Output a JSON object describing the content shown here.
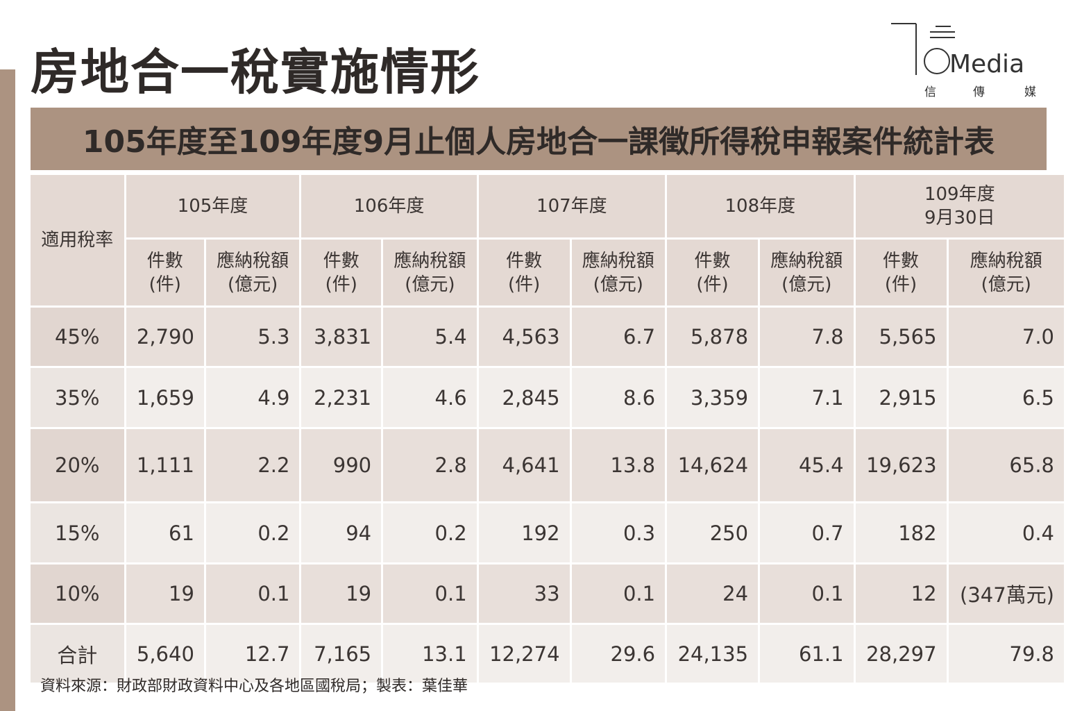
{
  "header": {
    "title": "房地合一稅實施情形",
    "logo": {
      "name": "Media",
      "subtitle": [
        "信",
        "傳",
        "媒"
      ]
    }
  },
  "table": {
    "caption": "105年度至109年度9月止個人房地合一課徵所得稅申報案件統計表",
    "rate_header": "適用稅率",
    "years": [
      [
        "105年度"
      ],
      [
        "106年度"
      ],
      [
        "107年度"
      ],
      [
        "108年度"
      ],
      [
        "109年度",
        "9月30日"
      ]
    ],
    "subheaders": [
      [
        "件數",
        "(件)"
      ],
      [
        "應納稅額",
        "(億元)"
      ]
    ],
    "rows": [
      {
        "rate": "45%",
        "cells": [
          "2,790",
          "5.3",
          "3,831",
          "5.4",
          "4,563",
          "6.7",
          "5,878",
          "7.8",
          "5,565",
          "7.0"
        ]
      },
      {
        "rate": "35%",
        "cells": [
          "1,659",
          "4.9",
          "2,231",
          "4.6",
          "2,845",
          "8.6",
          "3,359",
          "7.1",
          "2,915",
          "6.5"
        ]
      },
      {
        "rate": "20%",
        "cells": [
          "1,111",
          "2.2",
          "990",
          "2.8",
          "4,641",
          "13.8",
          "14,624",
          "45.4",
          "19,623",
          "65.8"
        ]
      },
      {
        "rate": "15%",
        "cells": [
          "61",
          "0.2",
          "94",
          "0.2",
          "192",
          "0.3",
          "250",
          "0.7",
          "182",
          "0.4"
        ]
      },
      {
        "rate": "10%",
        "cells": [
          "19",
          "0.1",
          "19",
          "0.1",
          "33",
          "0.1",
          "24",
          "0.1",
          "12",
          "(347萬元)"
        ]
      },
      {
        "rate": "合計",
        "cells": [
          "5,640",
          "12.7",
          "7,165",
          "13.1",
          "12,274",
          "29.6",
          "24,135",
          "61.1",
          "28,297",
          "79.8"
        ]
      }
    ]
  },
  "source": "資料來源：財政部財政資料中心及各地區國稅局；製表：葉佳華"
}
